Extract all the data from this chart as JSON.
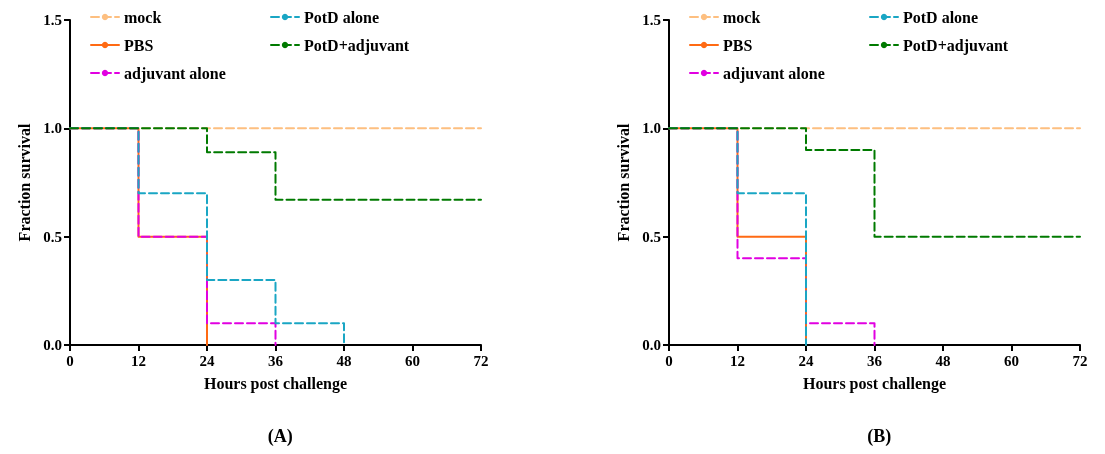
{
  "chart_data": [
    {
      "type": "step",
      "title": "(A)",
      "xlabel": "Hours post challenge",
      "ylabel": "Fraction survival",
      "xlim": [
        0,
        72
      ],
      "xticks": [
        0,
        12,
        24,
        36,
        48,
        60,
        72
      ],
      "ylim": [
        0,
        1.5
      ],
      "yticks": [
        {
          "value": 0,
          "label": "0.0"
        },
        {
          "value": 0.5,
          "label": "0.5"
        },
        {
          "value": 1,
          "label": "1.0"
        },
        {
          "value": 1.5,
          "label": "1.5"
        }
      ],
      "grid": false,
      "legend": "top left",
      "series": [
        {
          "name": "mock",
          "color": "#fdbf80",
          "line_style": "dashed",
          "x": [
            0,
            12,
            24,
            36,
            48,
            60,
            72
          ],
          "values": [
            1,
            1,
            1,
            1,
            1,
            1,
            1
          ]
        },
        {
          "name": "PBS",
          "color": "#ff6a13",
          "line_style": "solid",
          "x": [
            0,
            12,
            24
          ],
          "values": [
            1,
            0.5,
            0
          ]
        },
        {
          "name": "adjuvant alone",
          "color": "#e100e1",
          "line_style": "dashed",
          "x": [
            0,
            12,
            24,
            36
          ],
          "values": [
            1,
            0.5,
            0.1,
            0
          ]
        },
        {
          "name": "PotD alone",
          "color": "#1aa6c4",
          "line_style": "dashed",
          "x": [
            0,
            12,
            24,
            36,
            48
          ],
          "values": [
            1,
            0.7,
            0.3,
            0.1,
            0
          ]
        },
        {
          "name": "PotD+adjuvant",
          "color": "#007a00",
          "line_style": "dashed",
          "x": [
            0,
            12,
            24,
            36,
            48,
            60,
            72
          ],
          "values": [
            1,
            1,
            0.89,
            0.67,
            0.67,
            0.67,
            0.67
          ]
        }
      ]
    },
    {
      "type": "step",
      "title": "(B)",
      "xlabel": "Hours post challenge",
      "ylabel": "Fraction survival",
      "xlim": [
        0,
        72
      ],
      "xticks": [
        0,
        12,
        24,
        36,
        48,
        60,
        72
      ],
      "ylim": [
        0,
        1.5
      ],
      "yticks": [
        {
          "value": 0,
          "label": "0.0"
        },
        {
          "value": 0.5,
          "label": "0.5"
        },
        {
          "value": 1,
          "label": "1.0"
        },
        {
          "value": 1.5,
          "label": "1.5"
        }
      ],
      "grid": false,
      "legend": "top left",
      "series": [
        {
          "name": "mock",
          "color": "#fdbf80",
          "line_style": "dashed",
          "x": [
            0,
            12,
            24,
            36,
            48,
            60,
            72
          ],
          "values": [
            1,
            1,
            1,
            1,
            1,
            1,
            1
          ]
        },
        {
          "name": "PBS",
          "color": "#ff6a13",
          "line_style": "solid",
          "x": [
            0,
            12,
            24
          ],
          "values": [
            1,
            0.5,
            0
          ]
        },
        {
          "name": "adjuvant alone",
          "color": "#e100e1",
          "line_style": "dashed",
          "x": [
            0,
            12,
            24,
            36
          ],
          "values": [
            1,
            0.4,
            0.1,
            0
          ]
        },
        {
          "name": "PotD alone",
          "color": "#1aa6c4",
          "line_style": "dashed",
          "x": [
            0,
            12,
            24
          ],
          "values": [
            1,
            0.7,
            0
          ]
        },
        {
          "name": "PotD+adjuvant",
          "color": "#007a00",
          "line_style": "dashed",
          "x": [
            0,
            12,
            24,
            36,
            48,
            60,
            72
          ],
          "values": [
            1,
            1,
            0.9,
            0.5,
            0.5,
            0.5,
            0.5
          ]
        }
      ]
    }
  ]
}
